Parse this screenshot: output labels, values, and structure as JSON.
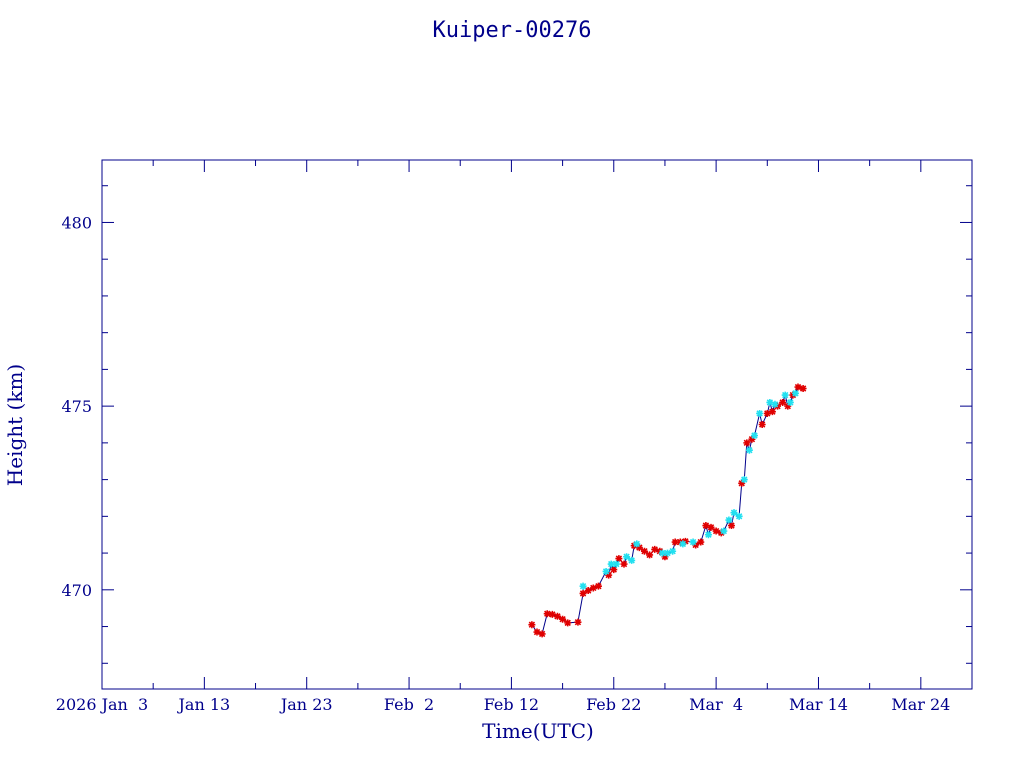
{
  "chart_data": {
    "type": "scatter",
    "title": "Kuiper-00276",
    "xlabel": "Time(UTC)",
    "ylabel": "Height (km)",
    "x_type": "date",
    "xlim": [
      "2026-01-03",
      "2026-03-29"
    ],
    "ylim": [
      467.3,
      481.7
    ],
    "x_tick_labels": [
      {
        "date": "2026-01-03",
        "label": "2026 Jan  3"
      },
      {
        "date": "2026-01-13",
        "label": "Jan 13"
      },
      {
        "date": "2026-01-23",
        "label": "Jan 23"
      },
      {
        "date": "2026-02-02",
        "label": "Feb  2"
      },
      {
        "date": "2026-02-12",
        "label": "Feb 12"
      },
      {
        "date": "2026-02-22",
        "label": "Feb 22"
      },
      {
        "date": "2026-03-04",
        "label": "Mar  4"
      },
      {
        "date": "2026-03-14",
        "label": "Mar 14"
      },
      {
        "date": "2026-03-24",
        "label": "Mar 24"
      }
    ],
    "y_tick_labels": [
      470,
      475,
      480
    ],
    "grid": false,
    "colors": {
      "axis": "#00008b",
      "line": "#00008b",
      "series_red": "#e00000",
      "series_cyan": "#22e0f0"
    },
    "series": [
      {
        "color": "#e00000",
        "marker": "star",
        "points": [
          [
            "2026-02-14T00:00",
            469.05
          ],
          [
            "2026-02-14T12:00",
            468.85
          ],
          [
            "2026-02-15T00:00",
            468.8
          ],
          [
            "2026-02-15T12:00",
            469.35
          ],
          [
            "2026-02-16T00:00",
            469.33
          ],
          [
            "2026-02-16T12:00",
            469.28
          ],
          [
            "2026-02-17T00:00",
            469.2
          ],
          [
            "2026-02-17T12:00",
            469.1
          ],
          [
            "2026-02-18T12:00",
            469.12
          ],
          [
            "2026-02-19T00:00",
            469.9
          ],
          [
            "2026-02-19T12:00",
            469.98
          ],
          [
            "2026-02-20T00:00",
            470.05
          ],
          [
            "2026-02-20T12:00",
            470.1
          ],
          [
            "2026-02-21T12:00",
            470.4
          ],
          [
            "2026-02-22T00:00",
            470.55
          ],
          [
            "2026-02-22T12:00",
            470.85
          ],
          [
            "2026-02-23T00:00",
            470.7
          ],
          [
            "2026-02-24T00:00",
            471.2
          ],
          [
            "2026-02-24T12:00",
            471.15
          ],
          [
            "2026-02-25T00:00",
            471.05
          ],
          [
            "2026-02-25T12:00",
            470.95
          ],
          [
            "2026-02-26T00:00",
            471.1
          ],
          [
            "2026-02-26T12:00",
            471.05
          ],
          [
            "2026-02-27T00:00",
            470.9
          ],
          [
            "2026-02-28T00:00",
            471.3
          ],
          [
            "2026-02-28T12:00",
            471.3
          ],
          [
            "2026-03-01T00:00",
            471.32
          ],
          [
            "2026-03-02T00:00",
            471.22
          ],
          [
            "2026-03-02T12:00",
            471.3
          ],
          [
            "2026-03-03T00:00",
            471.75
          ],
          [
            "2026-03-03T12:00",
            471.7
          ],
          [
            "2026-03-04T00:00",
            471.6
          ],
          [
            "2026-03-04T12:00",
            471.55
          ],
          [
            "2026-03-05T12:00",
            471.75
          ],
          [
            "2026-03-06T12:00",
            472.9
          ],
          [
            "2026-03-07T00:00",
            474.0
          ],
          [
            "2026-03-07T12:00",
            474.1
          ],
          [
            "2026-03-08T12:00",
            474.5
          ],
          [
            "2026-03-09T00:00",
            474.8
          ],
          [
            "2026-03-09T12:00",
            474.85
          ],
          [
            "2026-03-10T00:00",
            475.0
          ],
          [
            "2026-03-10T12:00",
            475.1
          ],
          [
            "2026-03-11T00:00",
            475.0
          ],
          [
            "2026-03-11T12:00",
            475.3
          ],
          [
            "2026-03-12T00:00",
            475.52
          ],
          [
            "2026-03-12T12:00",
            475.48
          ]
        ]
      },
      {
        "color": "#22e0f0",
        "marker": "star",
        "points": [
          [
            "2026-02-19T00:00",
            470.1
          ],
          [
            "2026-02-21T06:00",
            470.5
          ],
          [
            "2026-02-21T18:00",
            470.7
          ],
          [
            "2026-02-22T06:00",
            470.7
          ],
          [
            "2026-02-23T06:00",
            470.9
          ],
          [
            "2026-02-23T18:00",
            470.8
          ],
          [
            "2026-02-24T06:00",
            471.25
          ],
          [
            "2026-02-26T18:00",
            471.0
          ],
          [
            "2026-02-27T06:00",
            471.0
          ],
          [
            "2026-02-27T18:00",
            471.05
          ],
          [
            "2026-02-28T18:00",
            471.25
          ],
          [
            "2026-03-01T18:00",
            471.3
          ],
          [
            "2026-03-03T06:00",
            471.5
          ],
          [
            "2026-03-04T18:00",
            471.6
          ],
          [
            "2026-03-05T06:00",
            471.9
          ],
          [
            "2026-03-05T18:00",
            472.1
          ],
          [
            "2026-03-06T06:00",
            472.0
          ],
          [
            "2026-03-06T18:00",
            473.0
          ],
          [
            "2026-03-07T06:00",
            473.8
          ],
          [
            "2026-03-07T18:00",
            474.2
          ],
          [
            "2026-03-08T06:00",
            474.8
          ],
          [
            "2026-03-09T06:00",
            475.1
          ],
          [
            "2026-03-09T18:00",
            475.05
          ],
          [
            "2026-03-10T18:00",
            475.3
          ],
          [
            "2026-03-11T06:00",
            475.1
          ],
          [
            "2026-03-11T18:00",
            475.35
          ]
        ]
      }
    ]
  }
}
